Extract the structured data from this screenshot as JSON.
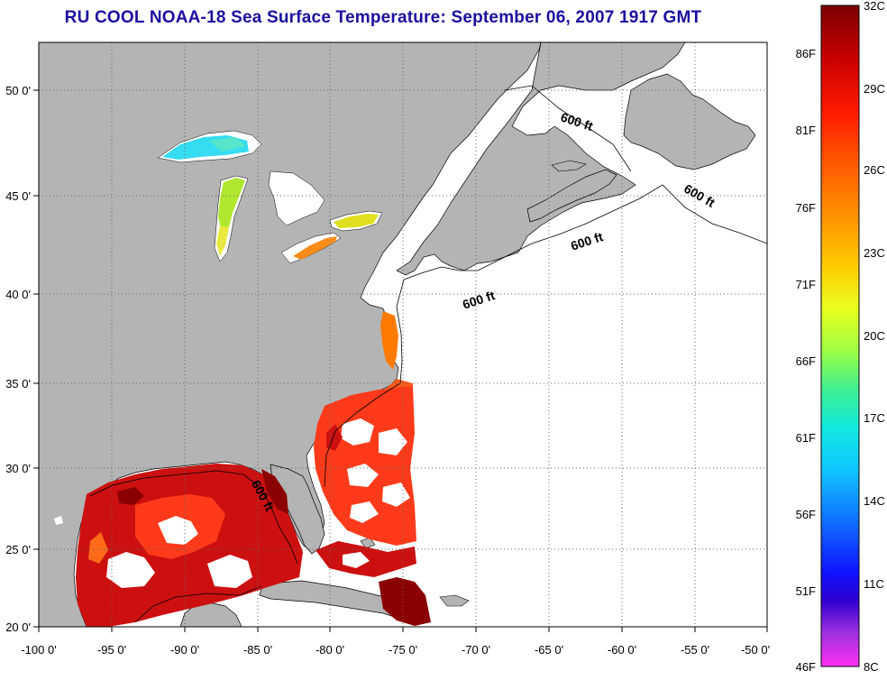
{
  "title": "RU COOL  NOAA-18  Sea Surface Temperature:  September 06, 2007 1917 GMT",
  "map": {
    "lon_min": -100,
    "lon_max": -50,
    "lat_min": 20,
    "lat_max": 52.5,
    "lon_ticks": [
      "-100 0'",
      "-95 0'",
      "-90 0'",
      "-85 0'",
      "-80 0'",
      "-75 0'",
      "-70 0'",
      "-65 0'",
      "-60 0'",
      "-55 0'",
      "-50 0'"
    ],
    "lat_ticks": [
      "20 0'",
      "25 0'",
      "30 0'",
      "35 0'",
      "40 0'",
      "45 0'",
      "50 0'"
    ],
    "grid": true,
    "contour_label": "600 ft",
    "land_color": "#b4b4b4",
    "no_data_color": "#ffffff"
  },
  "colorbar": {
    "celsius_labels": [
      "32C",
      "29C",
      "26C",
      "23C",
      "20C",
      "17C",
      "14C",
      "11C",
      "8C"
    ],
    "fahrenheit_labels": [
      "86F",
      "81F",
      "76F",
      "71F",
      "66F",
      "61F",
      "56F",
      "51F",
      "46F"
    ],
    "colors": [
      "#8b0000",
      "#e00000",
      "#ff3a00",
      "#ff8c00",
      "#ffcc00",
      "#e6ff1a",
      "#7fff4a",
      "#2ef0b0",
      "#10e8ff",
      "#1a9bff",
      "#1030ff",
      "#2000e0",
      "#8a2be2",
      "#ff1aff"
    ]
  }
}
